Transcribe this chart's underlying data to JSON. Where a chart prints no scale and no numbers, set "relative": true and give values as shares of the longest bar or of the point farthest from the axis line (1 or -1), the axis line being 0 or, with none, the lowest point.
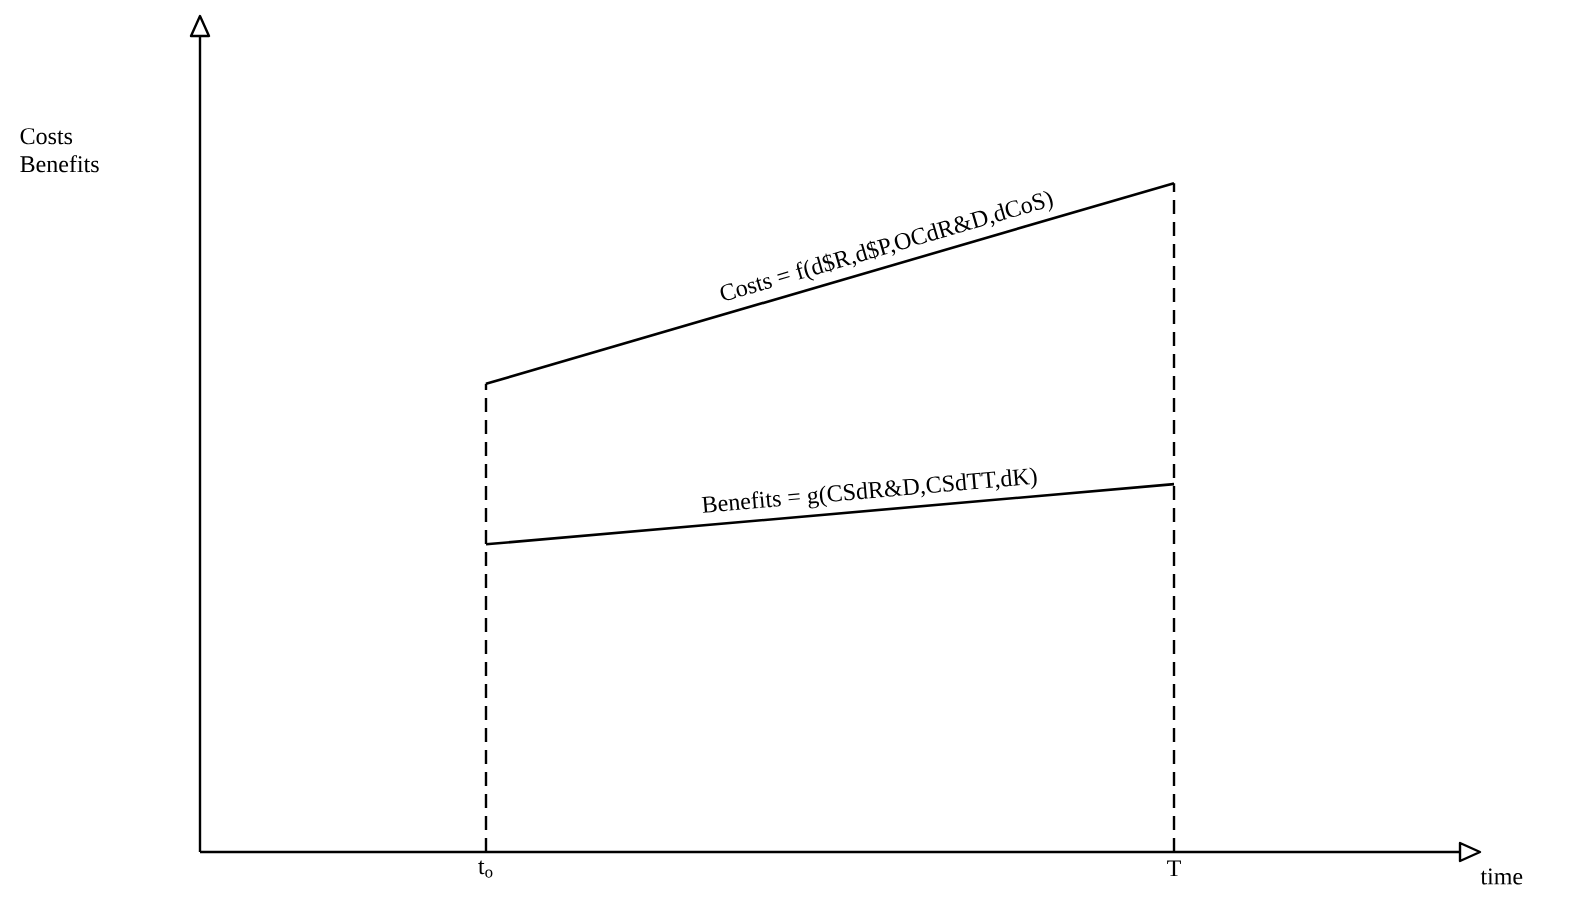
{
  "chart_data": {
    "type": "line",
    "relative": true,
    "xlabel": "time",
    "ylabel": "Costs Benefits",
    "categories": [
      "t$_{o}$",
      "T"
    ],
    "series": [
      {
        "name": "Costs = f(d$R,d$P,OCdR&D,dCoS)",
        "color": "#000000",
        "values": [
          0.7,
          1
        ]
      },
      {
        "name": "Benefits = g(CSdR&D,CSdTT,dK)",
        "color": "#000000",
        "values": [
          0.46,
          0.55
        ]
      }
    ],
    "ref_lines": [
      {
        "axis": "x",
        "value": "t$_{o}$",
        "line_style": "dashed"
      },
      {
        "axis": "x",
        "value": "T",
        "line_style": "dashed"
      }
    ],
    "marker": "none",
    "line_style": "solid"
  }
}
